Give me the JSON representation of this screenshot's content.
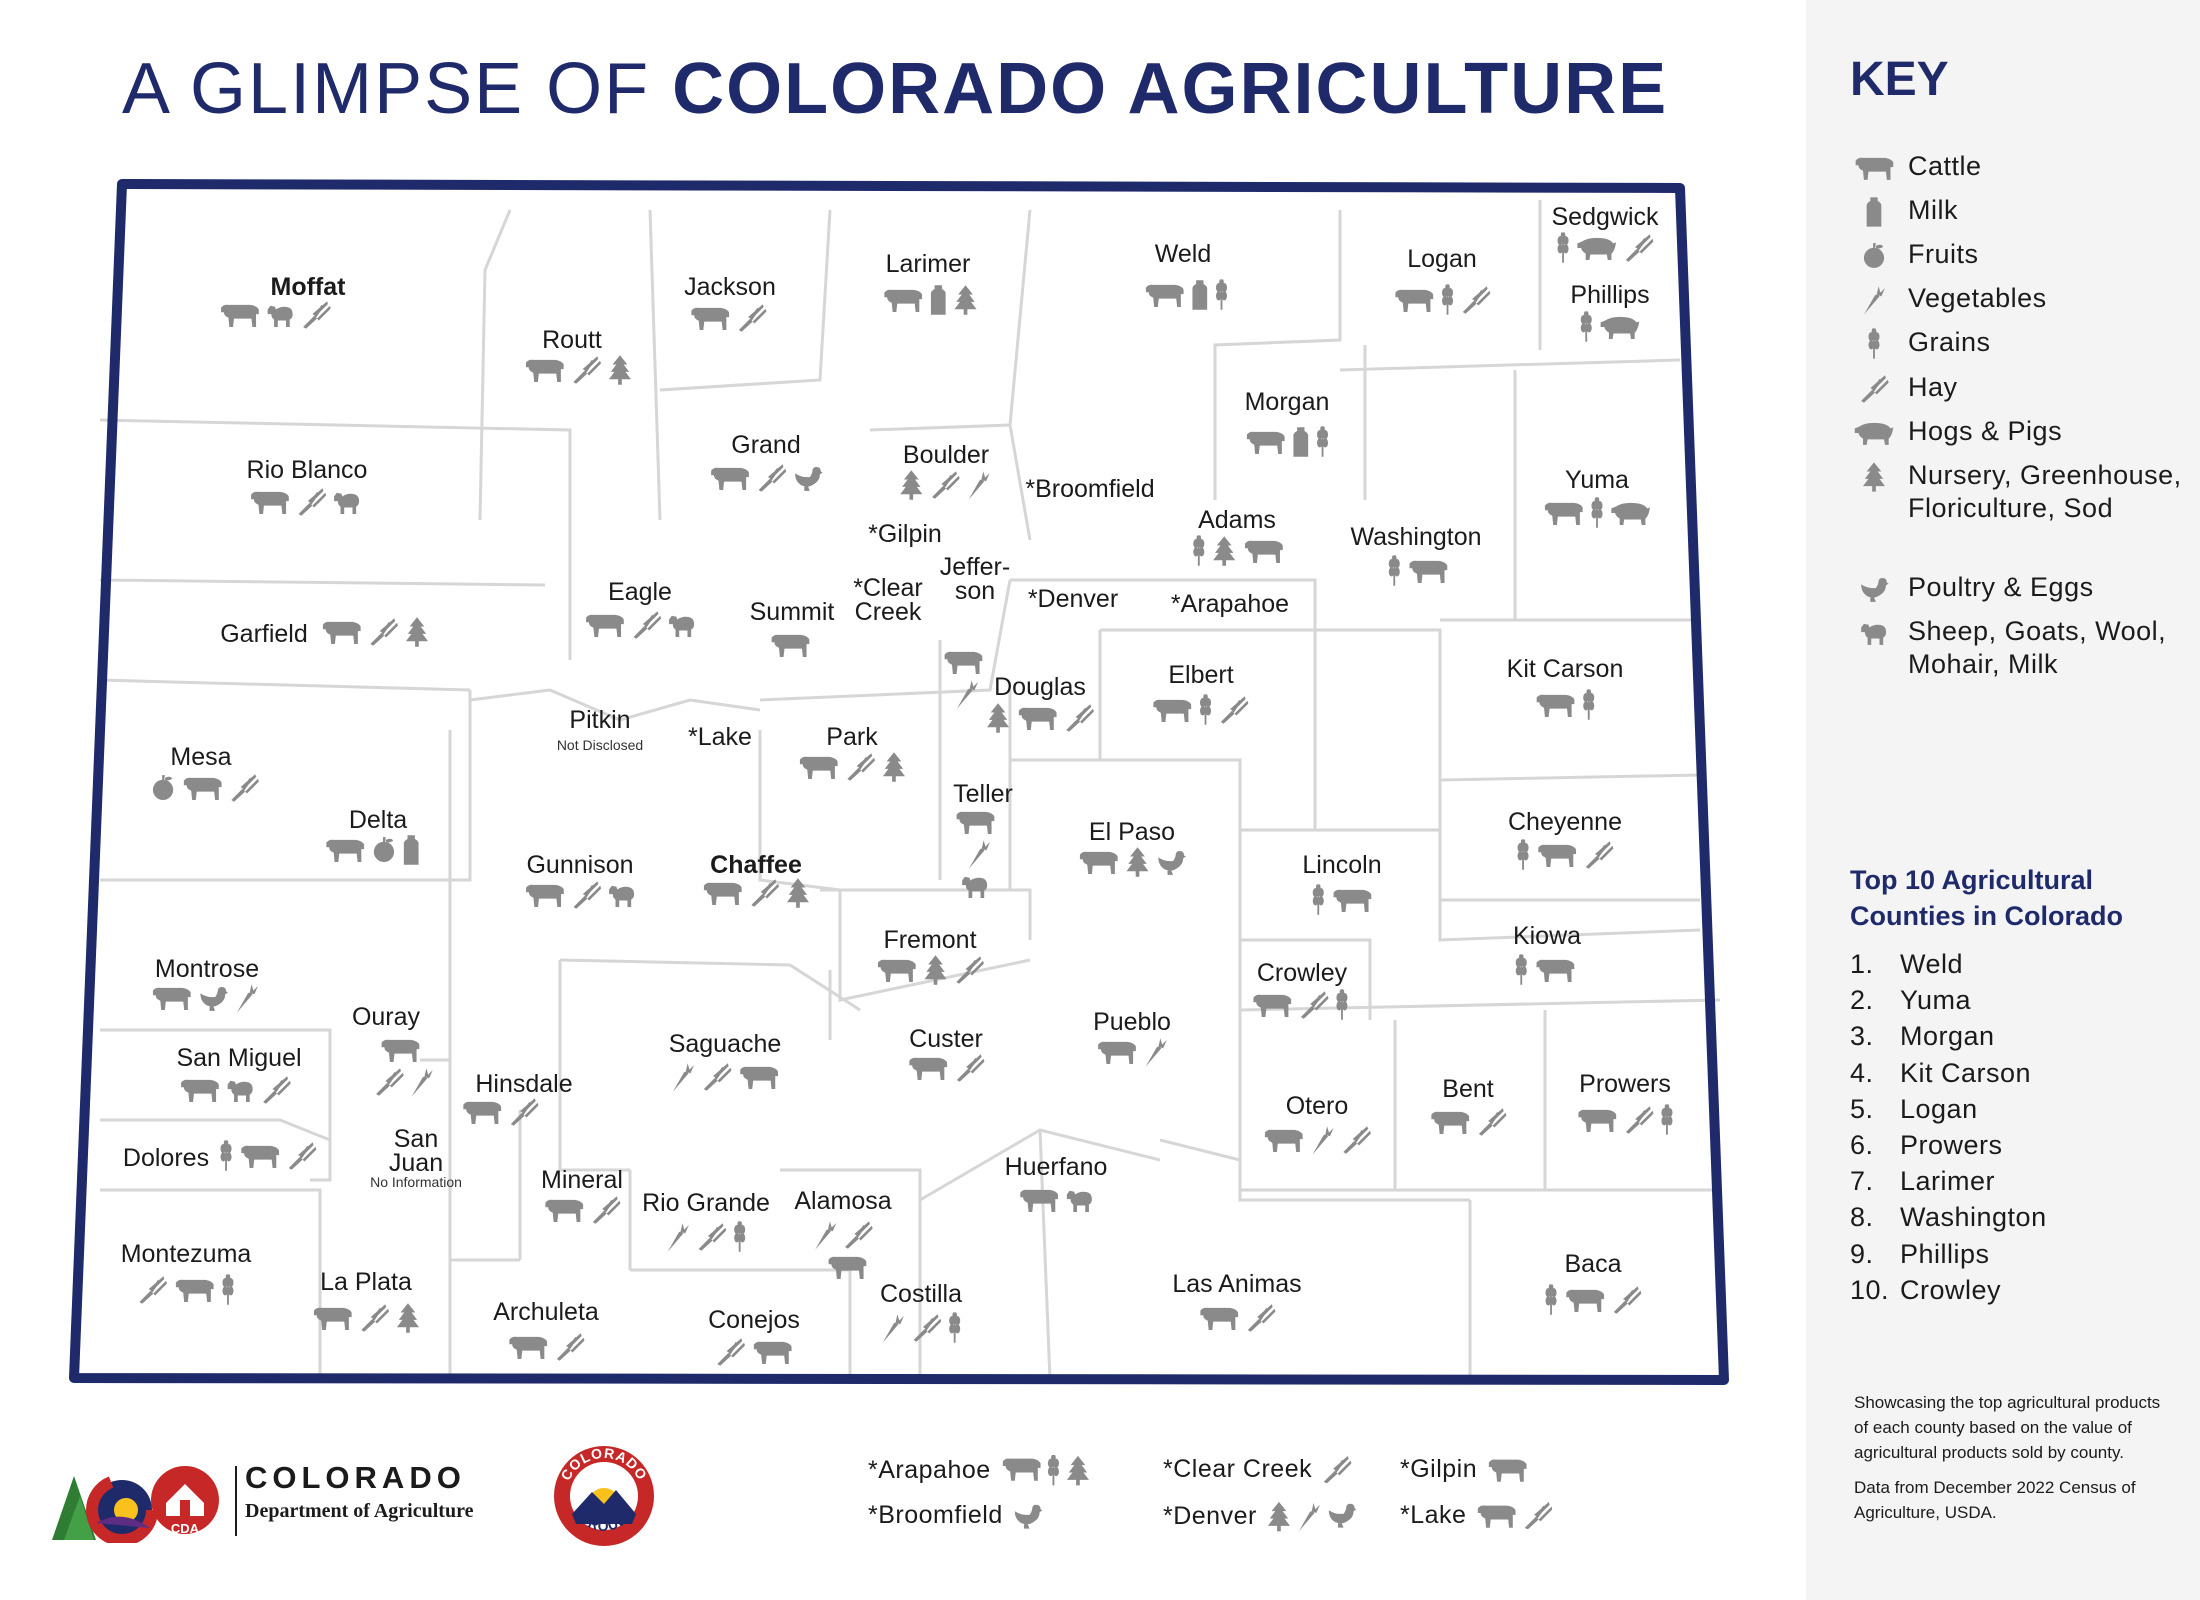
{
  "title": {
    "light": "A GLIMPSE OF ",
    "bold": "COLORADO AGRICULTURE"
  },
  "colors": {
    "navy": "#1f2a6b",
    "icon_gray": "#8a8a8a",
    "border_gray": "#d6d6d6",
    "panel": "#f4f4f5"
  },
  "counties": [
    {
      "id": "moffat",
      "name": "Moffat",
      "bold": true,
      "icons": [
        "cattle",
        "sheep",
        "hay"
      ]
    },
    {
      "id": "routt",
      "name": "Routt",
      "icons": [
        "cattle",
        "hay",
        "nursery"
      ]
    },
    {
      "id": "jackson",
      "name": "Jackson",
      "icons": [
        "cattle",
        "hay"
      ]
    },
    {
      "id": "larimer",
      "name": "Larimer",
      "icons": [
        "cattle",
        "milk",
        "nursery"
      ]
    },
    {
      "id": "weld",
      "name": "Weld",
      "icons": [
        "cattle",
        "milk",
        "grains"
      ]
    },
    {
      "id": "logan",
      "name": "Logan",
      "icons": [
        "cattle",
        "grains",
        "hay"
      ]
    },
    {
      "id": "sedgwick",
      "name": "Sedgwick",
      "icons": [
        "grains",
        "hogs",
        "hay"
      ]
    },
    {
      "id": "phillips",
      "name": "Phillips",
      "icons": [
        "grains",
        "hogs"
      ]
    },
    {
      "id": "rio_blanco",
      "name": "Rio Blanco",
      "icons": [
        "cattle",
        "hay",
        "sheep"
      ]
    },
    {
      "id": "grand",
      "name": "Grand",
      "icons": [
        "cattle",
        "hay",
        "poultry"
      ]
    },
    {
      "id": "boulder",
      "name": "Boulder",
      "icons": [
        "nursery",
        "hay",
        "vegetables"
      ]
    },
    {
      "id": "broomfield",
      "name": "*Broomfield",
      "icons": []
    },
    {
      "id": "morgan",
      "name": "Morgan",
      "icons": [
        "cattle",
        "milk",
        "grains"
      ]
    },
    {
      "id": "yuma",
      "name": "Yuma",
      "icons": [
        "cattle",
        "grains",
        "hogs"
      ]
    },
    {
      "id": "gilpin",
      "name": "*Gilpin",
      "icons": []
    },
    {
      "id": "adams",
      "name": "Adams",
      "icons": [
        "grains",
        "nursery",
        "cattle"
      ]
    },
    {
      "id": "washington",
      "name": "Washington",
      "icons": [
        "grains",
        "cattle"
      ]
    },
    {
      "id": "garfield",
      "name": "Garfield",
      "icons": [
        "cattle",
        "hay",
        "nursery"
      ]
    },
    {
      "id": "eagle",
      "name": "Eagle",
      "icons": [
        "cattle",
        "hay",
        "sheep"
      ]
    },
    {
      "id": "summit",
      "name": "Summit",
      "icons": [
        "cattle"
      ]
    },
    {
      "id": "clear_creek",
      "name": "*Clear Creek",
      "icons": []
    },
    {
      "id": "jefferson",
      "name": "Jeffer- son",
      "icons": [
        "cattle",
        "vegetables"
      ]
    },
    {
      "id": "denver",
      "name": "*Denver",
      "icons": []
    },
    {
      "id": "arapahoe",
      "name": "*Arapahoe",
      "icons": []
    },
    {
      "id": "mesa",
      "name": "Mesa",
      "icons": [
        "fruits",
        "cattle",
        "hay"
      ]
    },
    {
      "id": "pitkin",
      "name": "Pitkin",
      "note": "Not Disclosed",
      "icons": []
    },
    {
      "id": "lake",
      "name": "*Lake",
      "icons": []
    },
    {
      "id": "park",
      "name": "Park",
      "icons": [
        "cattle",
        "hay",
        "nursery"
      ]
    },
    {
      "id": "douglas",
      "name": "Douglas",
      "icons": [
        "nursery",
        "cattle",
        "hay"
      ]
    },
    {
      "id": "elbert",
      "name": "Elbert",
      "icons": [
        "cattle",
        "grains",
        "hay"
      ]
    },
    {
      "id": "kit_carson",
      "name": "Kit Carson",
      "icons": [
        "cattle",
        "grains"
      ]
    },
    {
      "id": "delta",
      "name": "Delta",
      "icons": [
        "cattle",
        "fruits",
        "milk"
      ]
    },
    {
      "id": "gunnison",
      "name": "Gunnison",
      "icons": [
        "cattle",
        "hay",
        "sheep"
      ]
    },
    {
      "id": "chaffee",
      "name": "Chaffee",
      "bold": true,
      "icons": [
        "cattle",
        "hay",
        "nursery"
      ]
    },
    {
      "id": "teller",
      "name": "Teller",
      "icons": [
        "cattle",
        "vegetables",
        "sheep"
      ]
    },
    {
      "id": "el_paso",
      "name": "El Paso",
      "icons": [
        "cattle",
        "nursery",
        "poultry"
      ]
    },
    {
      "id": "cheyenne",
      "name": "Cheyenne",
      "icons": [
        "grains",
        "cattle",
        "hay"
      ]
    },
    {
      "id": "lincoln",
      "name": "Lincoln",
      "icons": [
        "grains",
        "cattle"
      ]
    },
    {
      "id": "fremont",
      "name": "Fremont",
      "icons": [
        "cattle",
        "nursery",
        "hay"
      ]
    },
    {
      "id": "kiowa",
      "name": "Kiowa",
      "icons": [
        "grains",
        "cattle"
      ]
    },
    {
      "id": "montrose",
      "name": "Montrose",
      "icons": [
        "cattle",
        "poultry",
        "vegetables"
      ]
    },
    {
      "id": "crowley",
      "name": "Crowley",
      "icons": [
        "cattle",
        "hay",
        "grains"
      ]
    },
    {
      "id": "ouray",
      "name": "Ouray",
      "icons": [
        "cattle",
        "hay",
        "vegetables"
      ]
    },
    {
      "id": "san_miguel",
      "name": "San Miguel",
      "icons": [
        "cattle",
        "sheep",
        "hay"
      ]
    },
    {
      "id": "hinsdale",
      "name": "Hinsdale",
      "icons": [
        "cattle",
        "hay"
      ]
    },
    {
      "id": "saguache",
      "name": "Saguache",
      "icons": [
        "vegetables",
        "hay",
        "cattle"
      ]
    },
    {
      "id": "custer",
      "name": "Custer",
      "icons": [
        "cattle",
        "hay"
      ]
    },
    {
      "id": "pueblo",
      "name": "Pueblo",
      "icons": [
        "cattle",
        "vegetables"
      ]
    },
    {
      "id": "dolores",
      "name": "Dolores",
      "icons": [
        "grains",
        "cattle",
        "hay"
      ]
    },
    {
      "id": "san_juan",
      "name": "San Juan",
      "note": "No Information",
      "icons": []
    },
    {
      "id": "otero",
      "name": "Otero",
      "icons": [
        "cattle",
        "vegetables",
        "hay"
      ]
    },
    {
      "id": "bent",
      "name": "Bent",
      "icons": [
        "cattle",
        "hay"
      ]
    },
    {
      "id": "prowers",
      "name": "Prowers",
      "icons": [
        "cattle",
        "hay",
        "grains"
      ]
    },
    {
      "id": "mineral",
      "name": "Mineral",
      "icons": [
        "cattle",
        "hay"
      ]
    },
    {
      "id": "rio_grande",
      "name": "Rio Grande",
      "icons": [
        "vegetables",
        "hay",
        "grains"
      ]
    },
    {
      "id": "alamosa",
      "name": "Alamosa",
      "icons": [
        "vegetables",
        "hay",
        "cattle"
      ]
    },
    {
      "id": "huerfano",
      "name": "Huerfano",
      "icons": [
        "cattle",
        "sheep"
      ]
    },
    {
      "id": "montezuma",
      "name": "Montezuma",
      "icons": [
        "hay",
        "cattle",
        "grains"
      ]
    },
    {
      "id": "la_plata",
      "name": "La Plata",
      "icons": [
        "cattle",
        "hay",
        "nursery"
      ]
    },
    {
      "id": "archuleta",
      "name": "Archuleta",
      "icons": [
        "cattle",
        "hay"
      ]
    },
    {
      "id": "conejos",
      "name": "Conejos",
      "icons": [
        "hay",
        "cattle"
      ]
    },
    {
      "id": "costilla",
      "name": "Costilla",
      "icons": [
        "vegetables",
        "hay",
        "grains"
      ]
    },
    {
      "id": "las_animas",
      "name": "Las Animas",
      "icons": [
        "cattle",
        "hay"
      ]
    },
    {
      "id": "baca",
      "name": "Baca",
      "icons": [
        "grains",
        "cattle",
        "hay"
      ]
    }
  ],
  "key": {
    "title": "KEY",
    "items": [
      {
        "icon": "cattle",
        "label": "Cattle"
      },
      {
        "icon": "milk",
        "label": "Milk"
      },
      {
        "icon": "fruits",
        "label": "Fruits"
      },
      {
        "icon": "vegetables",
        "label": "Vegetables"
      },
      {
        "icon": "grains",
        "label": "Grains"
      },
      {
        "icon": "hay",
        "label": "Hay"
      },
      {
        "icon": "hogs",
        "label": "Hogs & Pigs"
      },
      {
        "icon": "nursery",
        "label": "Nursery, Greenhouse, Floriculture, Sod"
      },
      {
        "icon": "poultry",
        "label": "Poultry & Eggs"
      },
      {
        "icon": "sheep",
        "label": "Sheep, Goats, Wool, Mohair, Milk"
      }
    ]
  },
  "top10": {
    "title": "Top 10 Agricultural Counties in Colorado",
    "items": [
      "Weld",
      "Yuma",
      "Morgan",
      "Kit Carson",
      "Logan",
      "Prowers",
      "Larimer",
      "Washington",
      "Phillips",
      "Crowley"
    ]
  },
  "note": {
    "p1": "Showcasing the top agricultural products of each county based on the value of agricultural products sold by county.",
    "p2": "Data from December 2022 Census of Agriculture, USDA."
  },
  "footnotes": [
    {
      "id": "fn-arapahoe",
      "label": "*Arapahoe",
      "icons": [
        "cattle",
        "grains",
        "nursery"
      ]
    },
    {
      "id": "fn-broomfield",
      "label": "*Broomfield",
      "icons": [
        "poultry"
      ]
    },
    {
      "id": "fn-clear-creek",
      "label": "*Clear Creek",
      "icons": [
        "hay"
      ]
    },
    {
      "id": "fn-denver",
      "label": "*Denver",
      "icons": [
        "nursery",
        "vegetables",
        "poultry"
      ]
    },
    {
      "id": "fn-gilpin",
      "label": "*Gilpin",
      "icons": [
        "cattle"
      ]
    },
    {
      "id": "fn-lake",
      "label": "*Lake",
      "icons": [
        "cattle",
        "hay"
      ]
    }
  ],
  "logos": {
    "cda_badge": "CDA",
    "colorado": "COLORADO",
    "department": "Department of Agriculture",
    "proud_top": "COLORADO",
    "proud_bottom": "PROUD"
  }
}
